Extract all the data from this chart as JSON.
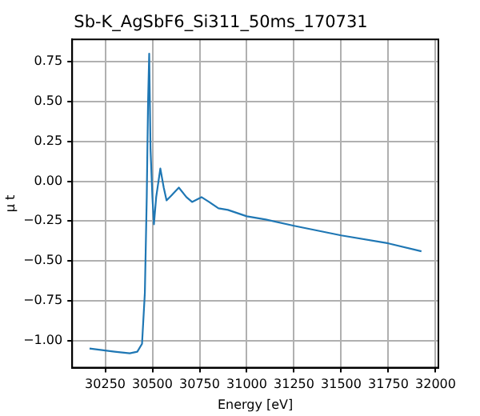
{
  "chart_data": {
    "type": "line",
    "title": "Sb-K_AgSbF6_Si311_50ms_170731",
    "xlabel": "Energy [eV]",
    "ylabel": "μ t",
    "xlim": [
      30075,
      32015
    ],
    "ylim": [
      -1.17,
      0.89
    ],
    "xticks": [
      30250,
      30500,
      30750,
      31000,
      31250,
      31500,
      31750,
      32000
    ],
    "yticks": [
      {
        "value": -1,
        "label": "−1.00"
      },
      {
        "value": -0.75,
        "label": "−0.75"
      },
      {
        "value": -0.5,
        "label": "−0.50"
      },
      {
        "value": -0.25,
        "label": "−0.25"
      },
      {
        "value": 0,
        "label": "0.00"
      },
      {
        "value": 0.25,
        "label": "0.25"
      },
      {
        "value": 0.5,
        "label": "0.50"
      },
      {
        "value": 0.75,
        "label": "0.75"
      }
    ],
    "grid": true,
    "marker": "none",
    "line_style": "solid",
    "series": [
      {
        "color": "#1f77b4",
        "x": [
          30167,
          30300,
          30380,
          30420,
          30445,
          30460,
          30470,
          30477,
          30483,
          30490,
          30500,
          30508,
          30520,
          30542,
          30560,
          30575,
          30600,
          30640,
          30680,
          30710,
          30760,
          30800,
          30850,
          30900,
          31000,
          31100,
          31250,
          31500,
          31750,
          31925
        ],
        "values": [
          -1.05,
          -1.07,
          -1.08,
          -1.07,
          -1.02,
          -0.7,
          -0.1,
          0.5,
          0.8,
          0.2,
          -0.1,
          -0.27,
          -0.1,
          0.08,
          -0.04,
          -0.12,
          -0.09,
          -0.04,
          -0.1,
          -0.13,
          -0.1,
          -0.13,
          -0.17,
          -0.18,
          -0.22,
          -0.24,
          -0.28,
          -0.34,
          -0.39,
          -0.44
        ]
      }
    ]
  }
}
